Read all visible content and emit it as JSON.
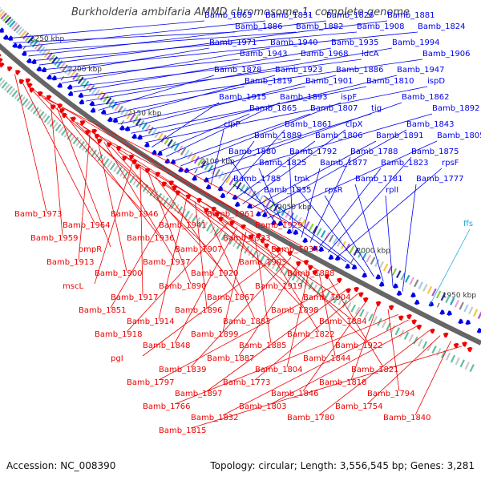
{
  "header": {
    "title": "Burkholderia ambifaria AMMD chromosome 1, complete genome"
  },
  "footer": {
    "accession": "Accession: NC_008390",
    "topology": "Topology: circular; Length: 3,556,545 bp; Genes: 3,281"
  },
  "colors": {
    "forward": "#0000ee",
    "reverse": "#ee0000",
    "rna": "#22aadd",
    "backbone": "#666666",
    "tick": "#2a8a2a"
  },
  "ticks": [
    "2250 kbp",
    "2200 kbp",
    "2150 kbp",
    "2100 kbp",
    "2050 kbp",
    "2000 kbp",
    "1950 kbp"
  ],
  "forward_labels": [
    "Bamb_1863",
    "Bamb_1886",
    "Bamb_1831",
    "Bamb_1882",
    "Bamb_1826",
    "Bamb_1908",
    "Bamb_1881",
    "Bamb_1824",
    "Bamb_1971",
    "Bamb_1943",
    "Bamb_1940",
    "Bamb_1968",
    "Bamb_1935",
    "ldcA",
    "Bamb_1994",
    "Bamb_1906",
    "Bamb_1878",
    "Bamb_1819",
    "Bamb_1923",
    "Bamb_1901",
    "Bamb_1886",
    "Bamb_1810",
    "Bamb_1947",
    "ispD",
    "Bamb_1915",
    "Bamb_1865",
    "Bamb_1893",
    "Bamb_1807",
    "ispF",
    "tig",
    "Bamb_1862",
    "Bamb_1892",
    "clpP",
    "Bamb_1889",
    "Bamb_1861",
    "Bamb_1806",
    "clpX",
    "Bamb_1891",
    "Bamb_1843",
    "Bamb_1805",
    "Bamb_1880",
    "Bamb_1825",
    "Bamb_1792",
    "Bamb_1877",
    "Bamb_1788",
    "Bamb_1823",
    "Bamb_1875",
    "rpsF",
    "Bamb_1785",
    "Bamb_1835",
    "tmk",
    "rpsR",
    "Bamb_1781",
    "rplI",
    "Bamb_1777"
  ],
  "rna_labels": [
    "ffs"
  ],
  "reverse_labels": [
    "Bamb_1973",
    "Bamb_1964",
    "Bamb_1946",
    "Bamb_1941",
    "Bamb_1961",
    "Bamb_1929",
    "Bamb_1959",
    "ompR",
    "Bamb_1936",
    "Bamb_1907",
    "Bamb_1933",
    "Bamb_1934",
    "Bamb_1913",
    "Bamb_1900",
    "Bamb_1937",
    "Bamb_1920",
    "Bamb_1903",
    "Bamb_1888",
    "mscL",
    "Bamb_1917",
    "Bamb_1890",
    "Bamb_1867",
    "Bamb_1919",
    "Bamb_1904",
    "Bamb_1851",
    "Bamb_1914",
    "Bamb_1896",
    "Bamb_1883",
    "Bamb_1898",
    "Bamb_1884",
    "Bamb_1918",
    "Bamb_1848",
    "Bamb_1899",
    "Bamb_1885",
    "Bamb_1822",
    "Bamb_1922",
    "pgI",
    "Bamb_1839",
    "Bamb_1887",
    "Bamb_1804",
    "Bamb_1844",
    "Bamb_1821",
    "Bamb_1797",
    "Bamb_1897",
    "Bamb_1773",
    "Bamb_1846",
    "Bamb_1818",
    "Bamb_1794",
    "Bamb_1766",
    "Bamb_1832",
    "Bamb_1803",
    "Bamb_1780",
    "Bamb_1754",
    "Bamb_1840",
    "Bamb_1815"
  ]
}
